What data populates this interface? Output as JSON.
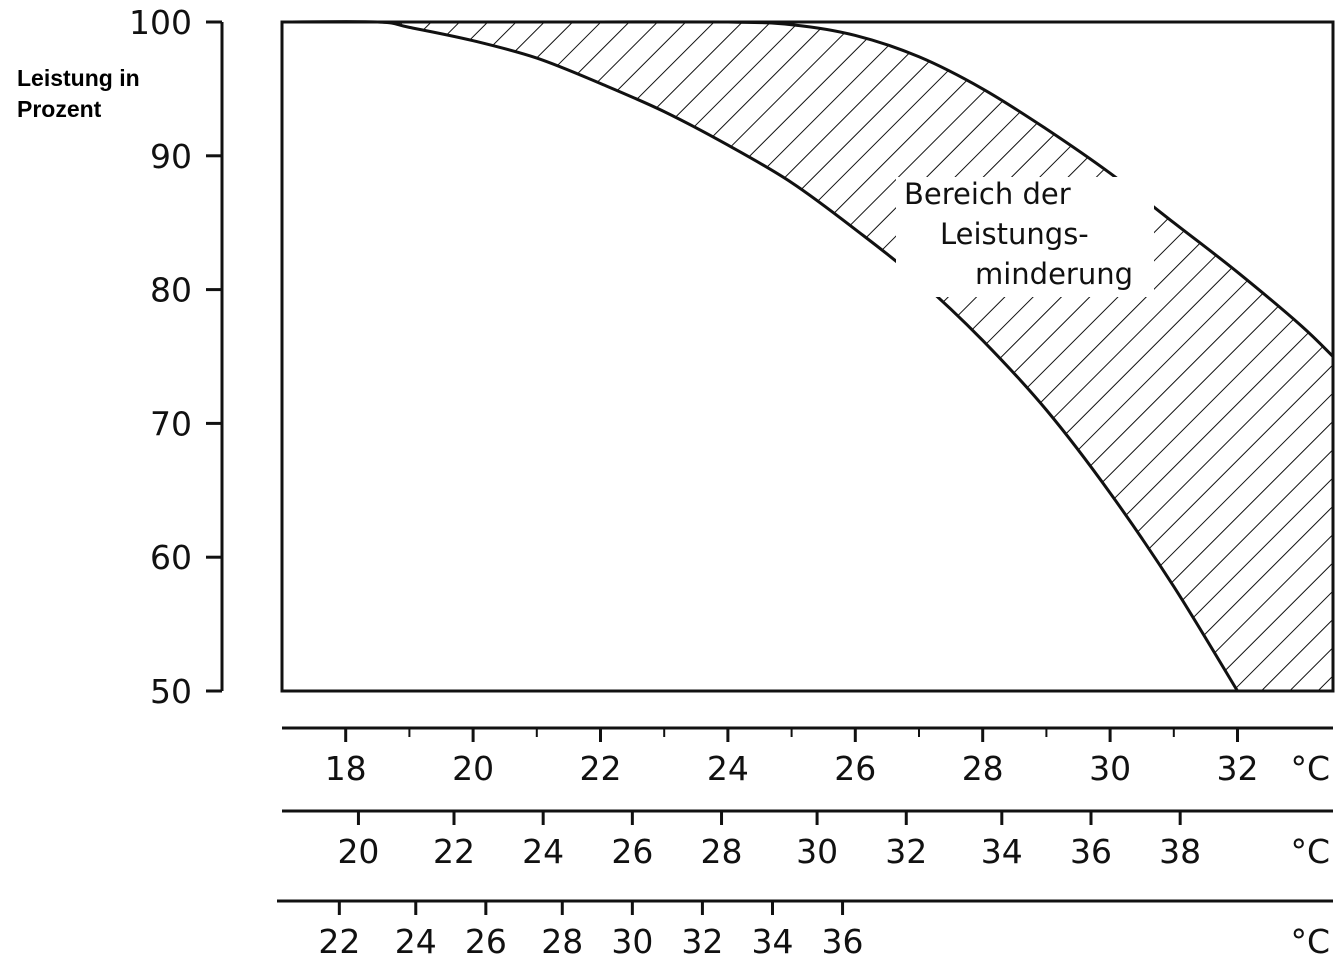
{
  "chart_data": {
    "type": "area",
    "title": "",
    "ylabel": [
      "Leistung in",
      "Prozent"
    ],
    "ylim": [
      50,
      100
    ],
    "yticks": [
      50,
      60,
      70,
      80,
      90,
      100
    ],
    "xlim": [
      17,
      33.5
    ],
    "grid": false,
    "legend": "none",
    "x_axes": [
      {
        "unit": "°C",
        "ticks": [
          18,
          20,
          22,
          24,
          26,
          28,
          30,
          32
        ],
        "tick_labels": [
          "18",
          "20",
          "22",
          "24",
          "26",
          "28",
          "30",
          "32"
        ],
        "minor_ticks": [
          19,
          21,
          23,
          25,
          27,
          29,
          31
        ]
      },
      {
        "unit": "°C",
        "ticks": [
          20,
          22,
          24,
          26,
          28,
          30,
          32,
          34,
          36,
          38
        ],
        "tick_labels": [
          "20",
          "22",
          "24",
          "26",
          "28",
          "30",
          "32",
          "34",
          "36",
          "38"
        ],
        "main_axis_equivalent": [
          18.2,
          19.7,
          21.1,
          22.5,
          23.9,
          25.4,
          26.8,
          28.3,
          29.7,
          31.1
        ]
      },
      {
        "unit": "°C",
        "ticks": [
          22,
          24,
          26,
          28,
          30,
          32,
          34,
          36
        ],
        "tick_labels": [
          "22",
          "24",
          "26",
          "28",
          "30",
          "32",
          "34",
          "36"
        ],
        "main_axis_equivalent": [
          17.9,
          19.1,
          20.2,
          21.4,
          22.5,
          23.6,
          24.7,
          25.8
        ]
      }
    ],
    "series": [
      {
        "role": "upper-boundary",
        "x": [
          17.0,
          18.5,
          20.0,
          22.0,
          24.0,
          25.0,
          26.0,
          27.0,
          28.0,
          29.0,
          30.0,
          31.0,
          32.0,
          33.0,
          33.5
        ],
        "y": [
          100,
          100,
          100,
          100,
          100,
          99.8,
          99.0,
          97.4,
          95.0,
          92.0,
          88.7,
          85.0,
          81.3,
          77.3,
          75.0
        ]
      },
      {
        "role": "lower-boundary",
        "x": [
          17.0,
          18.5,
          19.0,
          20.0,
          21.0,
          22.0,
          23.0,
          24.0,
          25.0,
          26.0,
          27.0,
          28.0,
          29.0,
          30.0,
          31.0,
          32.0
        ],
        "y": [
          100,
          100,
          99.6,
          98.6,
          97.3,
          95.4,
          93.3,
          90.8,
          88.0,
          84.5,
          80.7,
          76.2,
          71.0,
          64.8,
          57.8,
          50.0
        ]
      }
    ],
    "annotation": {
      "lines": [
        "Bereich der",
        "Leistungs-",
        "minderung"
      ]
    }
  }
}
